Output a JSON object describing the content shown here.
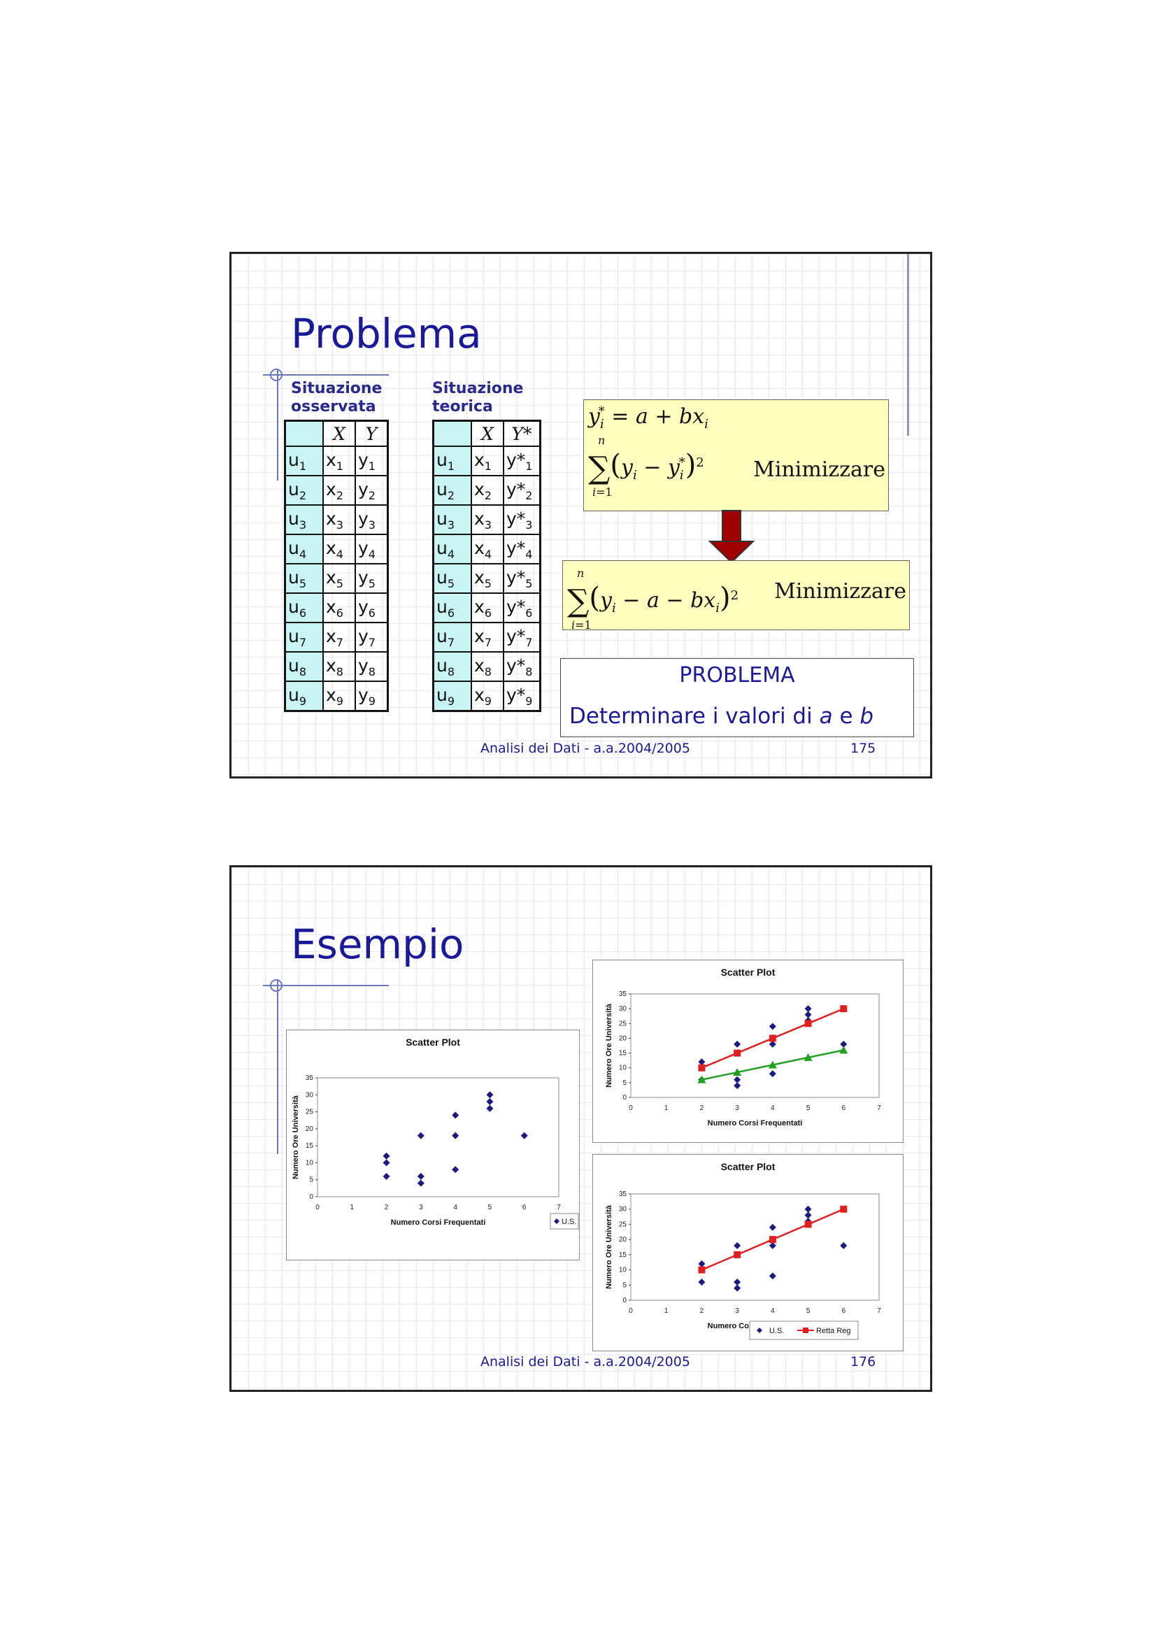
{
  "slide1": {
    "title": "Problema",
    "observed_heading": [
      "Situazione",
      "osservata"
    ],
    "theoretical_heading": [
      "Situazione",
      "teorica"
    ],
    "observed_table": {
      "headers": [
        "X",
        "Y"
      ],
      "rows": [
        [
          "u",
          "1",
          "x",
          "1",
          "y",
          "1"
        ],
        [
          "u",
          "2",
          "x",
          "2",
          "y",
          "2"
        ],
        [
          "u",
          "3",
          "x",
          "3",
          "y",
          "3"
        ],
        [
          "u",
          "4",
          "x",
          "4",
          "y",
          "4"
        ],
        [
          "u",
          "5",
          "x",
          "5",
          "y",
          "5"
        ],
        [
          "u",
          "6",
          "x",
          "6",
          "y",
          "6"
        ],
        [
          "u",
          "7",
          "x",
          "7",
          "y",
          "7"
        ],
        [
          "u",
          "8",
          "x",
          "8",
          "y",
          "8"
        ],
        [
          "u",
          "9",
          "x",
          "9",
          "y",
          "9"
        ]
      ]
    },
    "theoretical_table": {
      "headers": [
        "X",
        "Y*"
      ],
      "rows": [
        [
          "u",
          "1",
          "x",
          "1",
          "y*",
          "1"
        ],
        [
          "u",
          "2",
          "x",
          "2",
          "y*",
          "2"
        ],
        [
          "u",
          "3",
          "x",
          "3",
          "y*",
          "3"
        ],
        [
          "u",
          "4",
          "x",
          "4",
          "y*",
          "4"
        ],
        [
          "u",
          "5",
          "x",
          "5",
          "y*",
          "5"
        ],
        [
          "u",
          "6",
          "x",
          "6",
          "y*",
          "6"
        ],
        [
          "u",
          "7",
          "x",
          "7",
          "y*",
          "7"
        ],
        [
          "u",
          "8",
          "x",
          "8",
          "y*",
          "8"
        ],
        [
          "u",
          "9",
          "x",
          "9",
          "y*",
          "9"
        ]
      ]
    },
    "minimize_label": "Minimizzare",
    "problem_title": "PROBLEMA",
    "problem_text": "Determinare i valori di",
    "problem_a": "a",
    "problem_e": "e",
    "problem_b": "b",
    "footer_text": "Analisi dei Dati - a.a.2004/2005",
    "page_number": "175"
  },
  "slide2": {
    "title": "Esempio",
    "footer_text": "Analisi dei Dati - a.a.2004/2005",
    "page_number": "176"
  },
  "colors": {
    "title_blue": "#1a1a99",
    "cell_cyan": "#c9f4f4",
    "formula_box": "#ffffc0",
    "arrow_red": "#a00000",
    "point_navy": "#1a1a80",
    "line_red": "#e02020",
    "line_green": "#20a020"
  },
  "chart_data": [
    {
      "type": "scatter",
      "title": "Scatter Plot",
      "xlabel": "Numero Corsi Frequentati",
      "ylabel": "Numero Ore Università",
      "xlim": [
        0,
        7
      ],
      "ylim": [
        0,
        35
      ],
      "xticks": [
        "0",
        "1",
        "2",
        "3",
        "4",
        "5",
        "6",
        "7"
      ],
      "yticks": [
        "0",
        "5",
        "10",
        "15",
        "20",
        "25",
        "30",
        "35"
      ],
      "legend": [
        "U.S."
      ],
      "legend_position": "bottom-right",
      "grid": false,
      "series": [
        {
          "name": "U.S.",
          "points": [
            [
              2,
              6
            ],
            [
              2,
              10
            ],
            [
              2,
              12
            ],
            [
              3,
              4
            ],
            [
              3,
              6
            ],
            [
              3,
              18
            ],
            [
              4,
              8
            ],
            [
              4,
              18
            ],
            [
              4,
              24
            ],
            [
              5,
              26
            ],
            [
              5,
              28
            ],
            [
              5,
              30
            ],
            [
              6,
              18
            ]
          ]
        }
      ]
    },
    {
      "type": "scatter",
      "title": "Scatter Plot",
      "xlabel": "Numero Corsi Frequentati",
      "ylabel": "Numero Ore Università",
      "xlim": [
        0,
        7
      ],
      "ylim": [
        0,
        35
      ],
      "xticks": [
        "0",
        "1",
        "2",
        "3",
        "4",
        "5",
        "6",
        "7"
      ],
      "yticks": [
        "0",
        "5",
        "10",
        "15",
        "20",
        "25",
        "30",
        "35"
      ],
      "grid": false,
      "series": [
        {
          "points": [
            [
              2,
              6
            ],
            [
              2,
              10
            ],
            [
              2,
              12
            ],
            [
              3,
              4
            ],
            [
              3,
              6
            ],
            [
              3,
              18
            ],
            [
              4,
              8
            ],
            [
              4,
              18
            ],
            [
              4,
              24
            ],
            [
              5,
              26
            ],
            [
              5,
              28
            ],
            [
              5,
              30
            ],
            [
              6,
              18
            ]
          ]
        },
        {
          "points": [
            [
              2,
              10
            ],
            [
              3,
              15
            ],
            [
              4,
              20
            ],
            [
              5,
              25
            ],
            [
              6,
              30
            ]
          ],
          "line": true,
          "color": "#e02020"
        },
        {
          "points": [
            [
              2,
              6
            ],
            [
              3,
              8.5
            ],
            [
              4,
              11
            ],
            [
              5,
              13.5
            ],
            [
              6,
              16
            ]
          ],
          "line": true,
          "color": "#20a020"
        }
      ]
    },
    {
      "type": "scatter",
      "title": "Scatter Plot",
      "xlabel": "Numero Corsi Frequentati",
      "ylabel": "Numero Ore Università",
      "xlim": [
        0,
        7
      ],
      "ylim": [
        0,
        35
      ],
      "xticks": [
        "0",
        "1",
        "2",
        "3",
        "4",
        "5",
        "6",
        "7"
      ],
      "yticks": [
        "0",
        "5",
        "10",
        "15",
        "20",
        "25",
        "30",
        "35"
      ],
      "legend": [
        "U.S.",
        "Retta Reg"
      ],
      "legend_position": "bottom-right",
      "grid": false,
      "series": [
        {
          "name": "U.S.",
          "points": [
            [
              2,
              6
            ],
            [
              2,
              10
            ],
            [
              2,
              12
            ],
            [
              3,
              4
            ],
            [
              3,
              6
            ],
            [
              3,
              18
            ],
            [
              4,
              8
            ],
            [
              4,
              18
            ],
            [
              4,
              24
            ],
            [
              5,
              26
            ],
            [
              5,
              28
            ],
            [
              5,
              30
            ],
            [
              6,
              18
            ]
          ]
        },
        {
          "name": "Retta Reg",
          "points": [
            [
              2,
              10
            ],
            [
              3,
              15
            ],
            [
              4,
              20
            ],
            [
              5,
              25
            ],
            [
              6,
              30
            ]
          ],
          "line": true,
          "color": "#e02020"
        }
      ]
    }
  ]
}
